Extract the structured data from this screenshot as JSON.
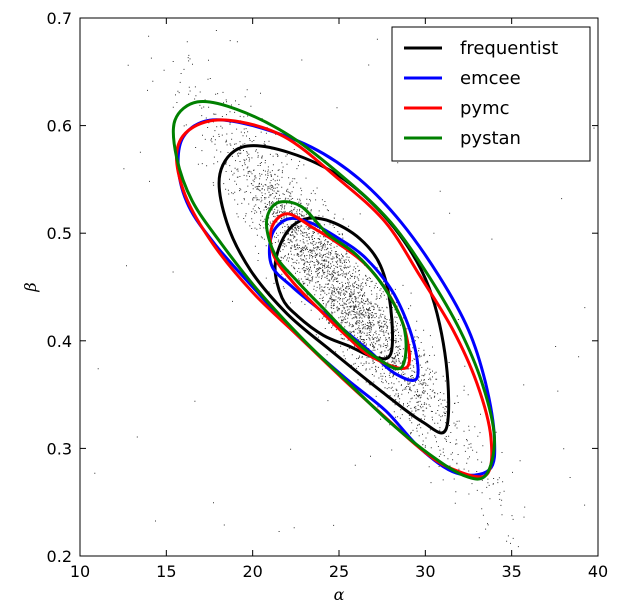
{
  "chart_data": {
    "type": "scatter",
    "xlabel": "α",
    "ylabel": "β",
    "xlim": [
      10,
      40
    ],
    "ylim": [
      0.2,
      0.7
    ],
    "xticks": [
      "10",
      "15",
      "20",
      "25",
      "30",
      "35",
      "40"
    ],
    "yticks": [
      "0.2",
      "0.3",
      "0.4",
      "0.5",
      "0.6",
      "0.7"
    ],
    "grid": false,
    "legend_position": "top-right",
    "scatter": {
      "center": [
        25,
        0.45
      ],
      "color": "#000000"
    },
    "series": [
      {
        "name": "frequentist",
        "color": "#000000",
        "contours": [
          [
            [
              28,
              0.388
            ],
            [
              28,
              0.43
            ],
            [
              27.4,
              0.47
            ],
            [
              26.2,
              0.495
            ],
            [
              24.5,
              0.511
            ],
            [
              23,
              0.513
            ],
            [
              21.9,
              0.499
            ],
            [
              21.3,
              0.47
            ],
            [
              21.7,
              0.44
            ],
            [
              22.6,
              0.423
            ],
            [
              24.1,
              0.405
            ],
            [
              25.6,
              0.395
            ],
            [
              27,
              0.385
            ]
          ],
          [
            [
              31.2,
              0.318
            ],
            [
              31.2,
              0.38
            ],
            [
              30.2,
              0.45
            ],
            [
              28.2,
              0.505
            ],
            [
              25.3,
              0.55
            ],
            [
              22.1,
              0.575
            ],
            [
              19.4,
              0.58
            ],
            [
              18.1,
              0.555
            ],
            [
              18.5,
              0.51
            ],
            [
              19.9,
              0.465
            ],
            [
              22,
              0.425
            ],
            [
              24.6,
              0.39
            ],
            [
              27.3,
              0.355
            ],
            [
              29.8,
              0.325
            ]
          ]
        ]
      },
      {
        "name": "emcee",
        "color": "#0000ff",
        "contours": [
          [
            [
              29.5,
              0.365
            ],
            [
              29.3,
              0.4
            ],
            [
              28.2,
              0.443
            ],
            [
              26.6,
              0.476
            ],
            [
              25,
              0.495
            ],
            [
              23.3,
              0.51
            ],
            [
              22,
              0.513
            ],
            [
              21.1,
              0.498
            ],
            [
              21.1,
              0.47
            ],
            [
              22.3,
              0.45
            ],
            [
              23.8,
              0.43
            ],
            [
              25.3,
              0.41
            ],
            [
              26.8,
              0.39
            ],
            [
              28.2,
              0.37
            ]
          ],
          [
            [
              33.7,
              0.28
            ],
            [
              34,
              0.31
            ],
            [
              33.5,
              0.36
            ],
            [
              32.5,
              0.41
            ],
            [
              30.8,
              0.46
            ],
            [
              28.6,
              0.51
            ],
            [
              26.2,
              0.55
            ],
            [
              23.4,
              0.58
            ],
            [
              20,
              0.6
            ],
            [
              17.5,
              0.605
            ],
            [
              16,
              0.59
            ],
            [
              15.7,
              0.56
            ],
            [
              16.3,
              0.525
            ],
            [
              17.8,
              0.49
            ],
            [
              20,
              0.45
            ],
            [
              22.6,
              0.405
            ],
            [
              25.4,
              0.365
            ],
            [
              27.7,
              0.335
            ],
            [
              29.7,
              0.3
            ],
            [
              31.8,
              0.277
            ]
          ]
        ]
      },
      {
        "name": "pymc",
        "color": "#ff0000",
        "contours": [
          [
            [
              28.9,
              0.375
            ],
            [
              28.9,
              0.405
            ],
            [
              28,
              0.44
            ],
            [
              26.6,
              0.47
            ],
            [
              25,
              0.49
            ],
            [
              23.5,
              0.505
            ],
            [
              22,
              0.518
            ],
            [
              21.1,
              0.505
            ],
            [
              21.2,
              0.48
            ],
            [
              22.3,
              0.455
            ],
            [
              23.8,
              0.43
            ],
            [
              25.4,
              0.405
            ],
            [
              26.9,
              0.385
            ]
          ],
          [
            [
              33.5,
              0.275
            ],
            [
              33.8,
              0.31
            ],
            [
              33,
              0.36
            ],
            [
              31.6,
              0.41
            ],
            [
              29.7,
              0.46
            ],
            [
              27.7,
              0.51
            ],
            [
              25,
              0.55
            ],
            [
              21.8,
              0.59
            ],
            [
              18.6,
              0.605
            ],
            [
              16.5,
              0.598
            ],
            [
              15.6,
              0.575
            ],
            [
              16.1,
              0.535
            ],
            [
              17.7,
              0.49
            ],
            [
              20,
              0.445
            ],
            [
              22.6,
              0.405
            ],
            [
              25.2,
              0.365
            ],
            [
              27.6,
              0.33
            ],
            [
              29.7,
              0.3
            ],
            [
              31.4,
              0.282
            ]
          ]
        ]
      },
      {
        "name": "pystan",
        "color": "#008000",
        "contours": [
          [
            [
              28.6,
              0.375
            ],
            [
              28.8,
              0.41
            ],
            [
              27.6,
              0.45
            ],
            [
              26,
              0.48
            ],
            [
              24.3,
              0.5
            ],
            [
              22.8,
              0.525
            ],
            [
              21.4,
              0.528
            ],
            [
              20.8,
              0.51
            ],
            [
              21.3,
              0.48
            ],
            [
              22.6,
              0.455
            ],
            [
              24.1,
              0.43
            ],
            [
              25.6,
              0.405
            ],
            [
              27.1,
              0.385
            ]
          ],
          [
            [
              33.5,
              0.275
            ],
            [
              34,
              0.31
            ],
            [
              33.3,
              0.36
            ],
            [
              32,
              0.41
            ],
            [
              30.2,
              0.46
            ],
            [
              28,
              0.51
            ],
            [
              25.4,
              0.55
            ],
            [
              22.2,
              0.59
            ],
            [
              19.1,
              0.615
            ],
            [
              16.8,
              0.622
            ],
            [
              15.5,
              0.605
            ],
            [
              15.6,
              0.57
            ],
            [
              16.5,
              0.53
            ],
            [
              18.2,
              0.49
            ],
            [
              20.4,
              0.445
            ],
            [
              23,
              0.4
            ],
            [
              25.6,
              0.36
            ],
            [
              27.9,
              0.325
            ],
            [
              30.2,
              0.295
            ],
            [
              32.2,
              0.275
            ]
          ]
        ]
      }
    ]
  }
}
